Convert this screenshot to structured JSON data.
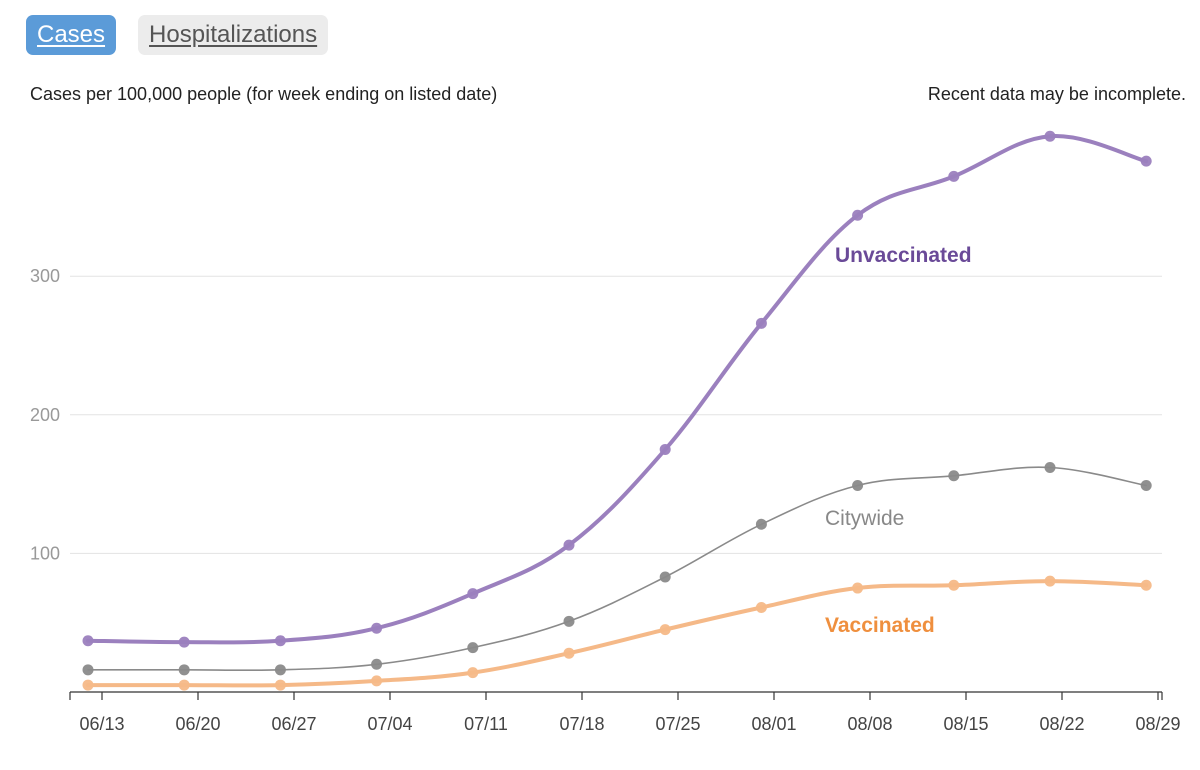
{
  "tabs": [
    {
      "label": "Cases",
      "active": true
    },
    {
      "label": "Hospitalizations",
      "active": false
    }
  ],
  "subtitle": "Cases per 100,000 people (for week ending on listed date)",
  "note": "Recent data may be incomplete.",
  "chart_data": {
    "type": "line",
    "title": "",
    "xlabel": "",
    "ylabel": "",
    "ylim": [
      0,
      385
    ],
    "yticks": [
      100,
      200,
      300
    ],
    "xtick_labels": [
      "06/13",
      "06/20",
      "06/27",
      "07/04",
      "07/11",
      "07/18",
      "07/25",
      "08/01",
      "08/08",
      "08/15",
      "08/22",
      "08/29"
    ],
    "x": [
      "06/12",
      "06/19",
      "06/26",
      "07/03",
      "07/10",
      "07/17",
      "07/24",
      "07/31",
      "08/07",
      "08/14",
      "08/21",
      "08/28"
    ],
    "grid": true,
    "series": [
      {
        "name": "Unvaccinated",
        "color": "#9b80be",
        "label_color": "#6a4a98",
        "bold_label": true,
        "values": [
          37,
          36,
          37,
          46,
          71,
          106,
          175,
          266,
          344,
          372,
          401,
          383
        ]
      },
      {
        "name": "Citywide",
        "color": "#8a8a8a",
        "label_color": "#888888",
        "bold_label": false,
        "values": [
          16,
          16,
          16,
          20,
          32,
          51,
          83,
          121,
          149,
          156,
          162,
          149
        ]
      },
      {
        "name": "Vaccinated",
        "color": "#f5b988",
        "label_color": "#ef8f3e",
        "bold_label": true,
        "values": [
          5,
          5,
          5,
          8,
          14,
          28,
          45,
          61,
          75,
          77,
          80,
          77
        ]
      }
    ]
  }
}
